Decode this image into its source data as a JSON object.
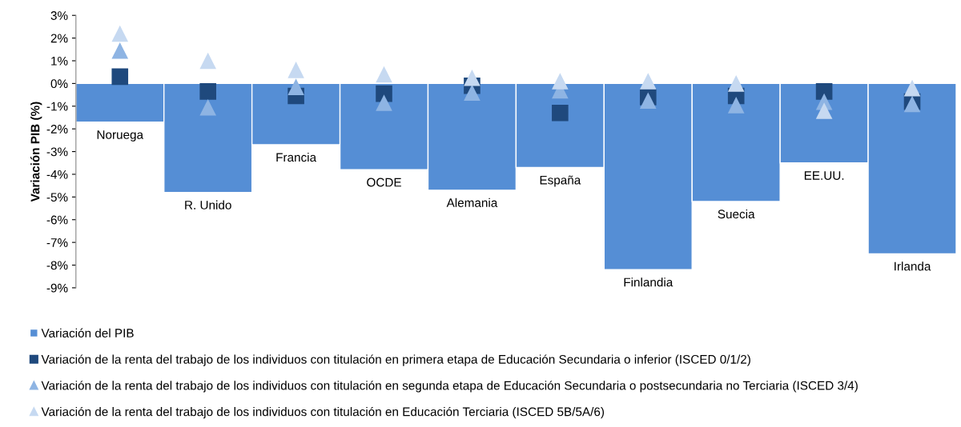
{
  "chart_data": {
    "type": "bar",
    "ylabel": "Variación PIB (%)",
    "categories": [
      "Noruega",
      "R. Unido",
      "Francia",
      "OCDE",
      "Alemania",
      "España",
      "Finlandia",
      "Suecia",
      "EE.UU.",
      "Irlanda"
    ],
    "series": [
      {
        "name": "Variación del PIB",
        "color": "#558ed5",
        "values": [
          -1.7,
          -4.8,
          -2.7,
          -3.8,
          -4.7,
          -3.7,
          -8.2,
          -5.2,
          -3.5,
          -7.5
        ]
      },
      {
        "name": "Variación de la renta del trabajo de los individuos con titulación en primera etapa de Educación Secundaria o inferior (ISCED 0/1/2)",
        "type": "scatter",
        "marker": "square",
        "color": "#1f497d",
        "values": [
          0.3,
          -0.35,
          -0.55,
          -0.45,
          -0.1,
          -1.3,
          -0.6,
          -0.55,
          -0.35,
          -0.8
        ]
      },
      {
        "name": "Variación de la renta del trabajo de los individuos con titulación en segunda etapa de Educación Secundaria o postsecundaria no Terciaria (ISCED 3/4)",
        "type": "scatter",
        "marker": "triangle",
        "color": "#8eb4e3",
        "values": [
          1.45,
          -1.05,
          -0.15,
          -0.85,
          -0.4,
          -0.3,
          -0.75,
          -0.95,
          -0.8,
          -0.9
        ]
      },
      {
        "name": "Variación de la renta del trabajo de los individuos con titulación en Educación Terciaria (ISCED 5B/5A/6)",
        "type": "scatter",
        "marker": "triangle",
        "color": "#c6d9f1",
        "values": [
          2.2,
          1.0,
          0.6,
          0.4,
          0.25,
          0.1,
          0.1,
          0.0,
          -1.2,
          -0.2
        ]
      }
    ],
    "ylim": [
      -9,
      3
    ],
    "yticks": [
      {
        "value": 3,
        "label": "3%"
      },
      {
        "value": 2,
        "label": "2%"
      },
      {
        "value": 1,
        "label": "1%"
      },
      {
        "value": 0,
        "label": "0%"
      },
      {
        "value": -1,
        "label": "-1%"
      },
      {
        "value": -2,
        "label": "-2%"
      },
      {
        "value": -3,
        "label": "-3%"
      },
      {
        "value": -4,
        "label": "-4%"
      },
      {
        "value": -5,
        "label": "-5%"
      },
      {
        "value": -6,
        "label": "-6%"
      },
      {
        "value": -7,
        "label": "-7%"
      },
      {
        "value": -8,
        "label": "-8%"
      },
      {
        "value": -9,
        "label": "-9%"
      }
    ],
    "tick_labels": "y",
    "grid": false,
    "legend": "bottom"
  }
}
